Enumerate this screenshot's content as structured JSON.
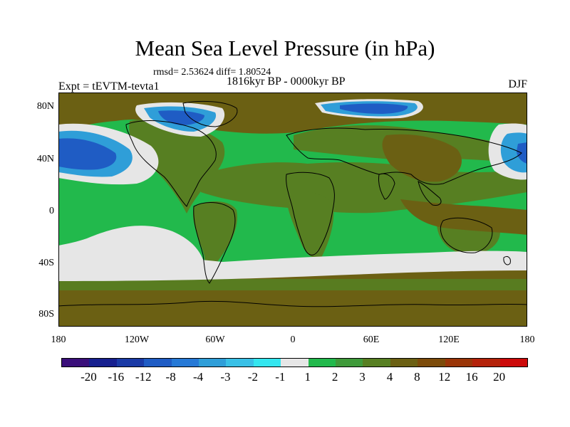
{
  "title": "Mean Sea Level Pressure (in hPa)",
  "stats": "rmsd= 2.53624 diff= 1.80524",
  "period": "1816kyr BP - 0000kyr BP",
  "experiment": "Expt = tEVTM-tevta1",
  "season": "DJF",
  "lat_ticks": [
    "80N",
    "40N",
    "0",
    "40S",
    "80S"
  ],
  "lon_ticks": [
    "180",
    "120W",
    "60W",
    "0",
    "60E",
    "120E",
    "180"
  ],
  "colorbar": {
    "colors": [
      "#3a0f7a",
      "#17208f",
      "#1a3aa6",
      "#1f5cc4",
      "#2679d6",
      "#2f9ed8",
      "#39c0e6",
      "#34e6ef",
      "#e6e6e6",
      "#22b94c",
      "#3f9a3a",
      "#577f22",
      "#6b6013",
      "#7c4b0a",
      "#9a3508",
      "#b4220a",
      "#cc0a0a"
    ],
    "labels": [
      "-20",
      "-16",
      "-12",
      "-8",
      "-4",
      "-3",
      "-2",
      "-1",
      "1",
      "2",
      "3",
      "4",
      "8",
      "12",
      "16",
      "20"
    ]
  },
  "map_colors": {
    "ocean_green": "#22b94c",
    "land_olive": "#577f22",
    "brown": "#6b6013",
    "light_gray": "#e6e6e6",
    "blue_light": "#2f9ed8",
    "blue_dark": "#1f5cc4",
    "coast": "#000000"
  }
}
